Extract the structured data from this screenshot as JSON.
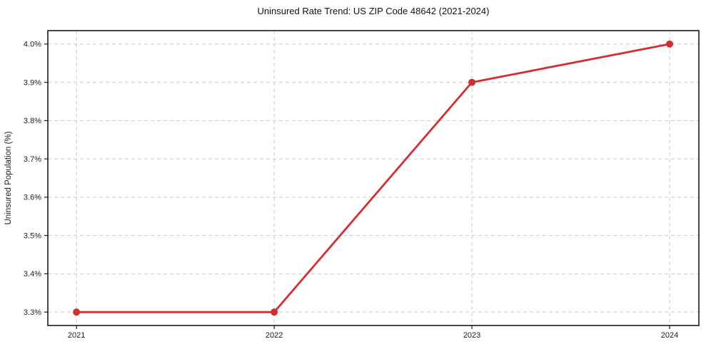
{
  "chart_data": {
    "type": "line",
    "title": "Uninsured Rate Trend: US ZIP Code 48642 (2021-2024)",
    "xlabel": "",
    "ylabel": "Uninsured Population (%)",
    "x": [
      2021,
      2022,
      2023,
      2024
    ],
    "x_tick_labels": [
      "2021",
      "2022",
      "2023",
      "2024"
    ],
    "values": [
      3.3,
      3.3,
      3.9,
      4.0
    ],
    "y_ticks": [
      3.3,
      3.4,
      3.5,
      3.6,
      3.7,
      3.8,
      3.9,
      4.0
    ],
    "y_tick_labels": [
      "3.3%",
      "3.4%",
      "3.5%",
      "3.6%",
      "3.7%",
      "3.8%",
      "3.9%",
      "4.0%"
    ],
    "xlim": [
      2020.855,
      2024.148
    ],
    "ylim": [
      3.265,
      4.035
    ],
    "grid": true,
    "legend": "none",
    "line_color": "#d32f30",
    "marker": "circle",
    "marker_radius": 5,
    "background_color": "#ffffff",
    "grid_color": "#c9c9c9",
    "axis_color": "#1a1a1a"
  }
}
